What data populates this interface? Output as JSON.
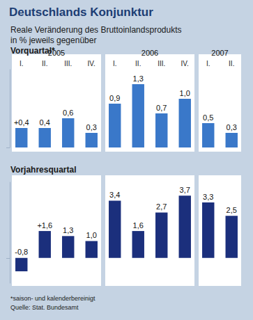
{
  "title": "Deutschlands Konjunktur",
  "subtitle": "Reale Veränderung des Bruttoinlandsprodukts\nin % jeweils gegenüber",
  "footnote": "*saison- und kalenderbereinigt",
  "source": "Quelle: Stat. Bundesamt",
  "chart_data": [
    {
      "type": "bar",
      "title": "Vorquartal*",
      "categories": [
        "I.",
        "II.",
        "III.",
        "IV.",
        "I.",
        "II.",
        "III.",
        "IV.",
        "I.",
        "II."
      ],
      "years": [
        "2005",
        "2005",
        "2005",
        "2005",
        "2006",
        "2006",
        "2006",
        "2006",
        "2007",
        "2007"
      ],
      "values": [
        0.4,
        0.4,
        0.6,
        0.3,
        0.9,
        1.3,
        0.7,
        1.0,
        0.5,
        0.3
      ],
      "value_labels": [
        "+0,4",
        "0,4",
        "0,6",
        "0,3",
        "0,9",
        "1,3",
        "0,7",
        "1,0",
        "0,5",
        "0,3"
      ],
      "color": "#3a78c9",
      "ylim": [
        0,
        1.6
      ],
      "yticks": [
        0
      ],
      "grid": false,
      "data_labels": true,
      "tick_labels": "x"
    },
    {
      "type": "bar",
      "title": "Vorjahresquartal",
      "categories": [
        "I.",
        "II.",
        "III.",
        "IV.",
        "I.",
        "II.",
        "III.",
        "IV.",
        "I.",
        "II."
      ],
      "values": [
        -0.8,
        1.6,
        1.3,
        1.0,
        3.4,
        1.6,
        2.7,
        3.7,
        3.3,
        2.5
      ],
      "value_labels": [
        "-0,8",
        "+1,6",
        "1,3",
        "1,0",
        "3,4",
        "1,6",
        "2,7",
        "3,7",
        "3,3",
        "2,5"
      ],
      "color": "#1b2f7c",
      "ylim": [
        -1.5,
        4.5
      ],
      "yticks": [
        0
      ],
      "grid": false,
      "data_labels": true,
      "tick_labels": false
    }
  ]
}
